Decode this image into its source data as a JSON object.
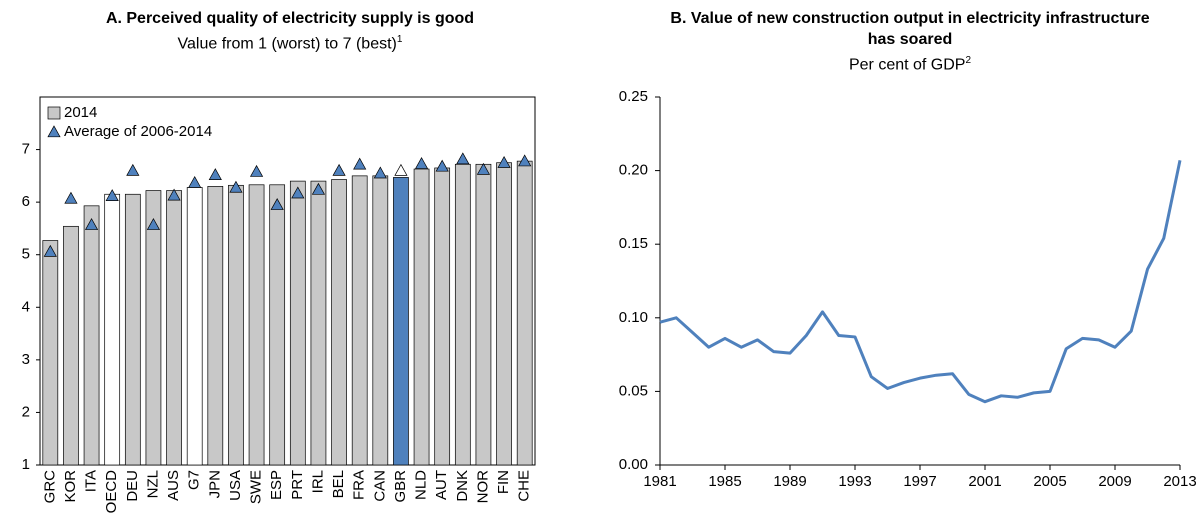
{
  "chart_data": [
    {
      "type": "bar",
      "title": "A. Perceived quality of electricity supply is good",
      "subtitle": "Value from 1 (worst) to 7 (best)",
      "subtitle_note": "1",
      "categories": [
        "GRC",
        "KOR",
        "ITA",
        "OECD",
        "DEU",
        "NZL",
        "AUS",
        "G7",
        "JPN",
        "USA",
        "SWE",
        "ESP",
        "PRT",
        "IRL",
        "BEL",
        "FRA",
        "CAN",
        "GBR",
        "NLD",
        "AUT",
        "DNK",
        "NOR",
        "FIN",
        "CHE"
      ],
      "series": [
        {
          "name": "2014",
          "kind": "bar",
          "color": "#c8c8c8",
          "colors": [
            "#c8c8c8",
            "#c8c8c8",
            "#c8c8c8",
            "#ffffff",
            "#c8c8c8",
            "#c8c8c8",
            "#c8c8c8",
            "#ffffff",
            "#c8c8c8",
            "#c8c8c8",
            "#c8c8c8",
            "#c8c8c8",
            "#c8c8c8",
            "#c8c8c8",
            "#c8c8c8",
            "#c8c8c8",
            "#c8c8c8",
            "#4f81bd",
            "#c8c8c8",
            "#c8c8c8",
            "#c8c8c8",
            "#c8c8c8",
            "#c8c8c8",
            "#c8c8c8"
          ],
          "values": [
            5.27,
            5.54,
            5.93,
            6.15,
            6.15,
            6.22,
            6.22,
            6.28,
            6.3,
            6.32,
            6.33,
            6.33,
            6.4,
            6.4,
            6.43,
            6.5,
            6.5,
            6.47,
            6.63,
            6.65,
            6.72,
            6.72,
            6.75,
            6.78
          ]
        },
        {
          "name": "Average of 2006-2014",
          "kind": "triangle",
          "color": "#4f81bd",
          "colors": [
            "#4f81bd",
            "#4f81bd",
            "#4f81bd",
            "#4f81bd",
            "#4f81bd",
            "#4f81bd",
            "#4f81bd",
            "#4f81bd",
            "#4f81bd",
            "#4f81bd",
            "#4f81bd",
            "#4f81bd",
            "#4f81bd",
            "#4f81bd",
            "#4f81bd",
            "#4f81bd",
            "#4f81bd",
            "#ffffff",
            "#4f81bd",
            "#4f81bd",
            "#4f81bd",
            "#4f81bd",
            "#4f81bd",
            "#4f81bd"
          ],
          "values": [
            5.06,
            6.07,
            5.57,
            6.12,
            6.6,
            5.57,
            6.13,
            6.37,
            6.52,
            6.28,
            6.58,
            5.95,
            6.17,
            6.24,
            6.6,
            6.72,
            6.55,
            6.6,
            6.73,
            6.68,
            6.82,
            6.62,
            6.75,
            6.78
          ]
        }
      ],
      "ylim": [
        1,
        8
      ],
      "yticks": [
        1,
        2,
        3,
        4,
        5,
        6,
        7
      ],
      "legend": "top-left"
    },
    {
      "type": "line",
      "title": "B. Value of new construction output in electricity infrastructure has soared",
      "subtitle": "Per cent of GDP",
      "subtitle_note": "2",
      "x": [
        1981,
        1982,
        1983,
        1984,
        1985,
        1986,
        1987,
        1988,
        1989,
        1990,
        1991,
        1992,
        1993,
        1994,
        1995,
        1996,
        1997,
        1998,
        1999,
        2000,
        2001,
        2002,
        2003,
        2004,
        2005,
        2006,
        2007,
        2008,
        2009,
        2010,
        2011,
        2012,
        2013
      ],
      "series": [
        {
          "name": null,
          "color": "#4f81bd",
          "values": [
            0.097,
            0.1,
            0.09,
            0.08,
            0.086,
            0.08,
            0.085,
            0.077,
            0.076,
            0.088,
            0.104,
            0.088,
            0.087,
            0.06,
            0.052,
            0.056,
            0.059,
            0.061,
            0.062,
            0.048,
            0.043,
            0.047,
            0.046,
            0.049,
            0.05,
            0.079,
            0.086,
            0.085,
            0.08,
            0.091,
            0.133,
            0.154,
            0.207
          ]
        }
      ],
      "xlim": [
        1981,
        2013
      ],
      "xticks": [
        1981,
        1985,
        1989,
        1993,
        1997,
        2001,
        2005,
        2009,
        2013
      ],
      "ylim": [
        0,
        0.25
      ],
      "yticks": [
        {
          "value": 0,
          "label": "0.00"
        },
        {
          "value": 0.05,
          "label": "0.05"
        },
        {
          "value": 0.1,
          "label": "0.10"
        },
        {
          "value": 0.15,
          "label": "0.15"
        },
        {
          "value": 0.2,
          "label": "0.20"
        },
        {
          "value": 0.25,
          "label": "0.25"
        }
      ]
    }
  ]
}
